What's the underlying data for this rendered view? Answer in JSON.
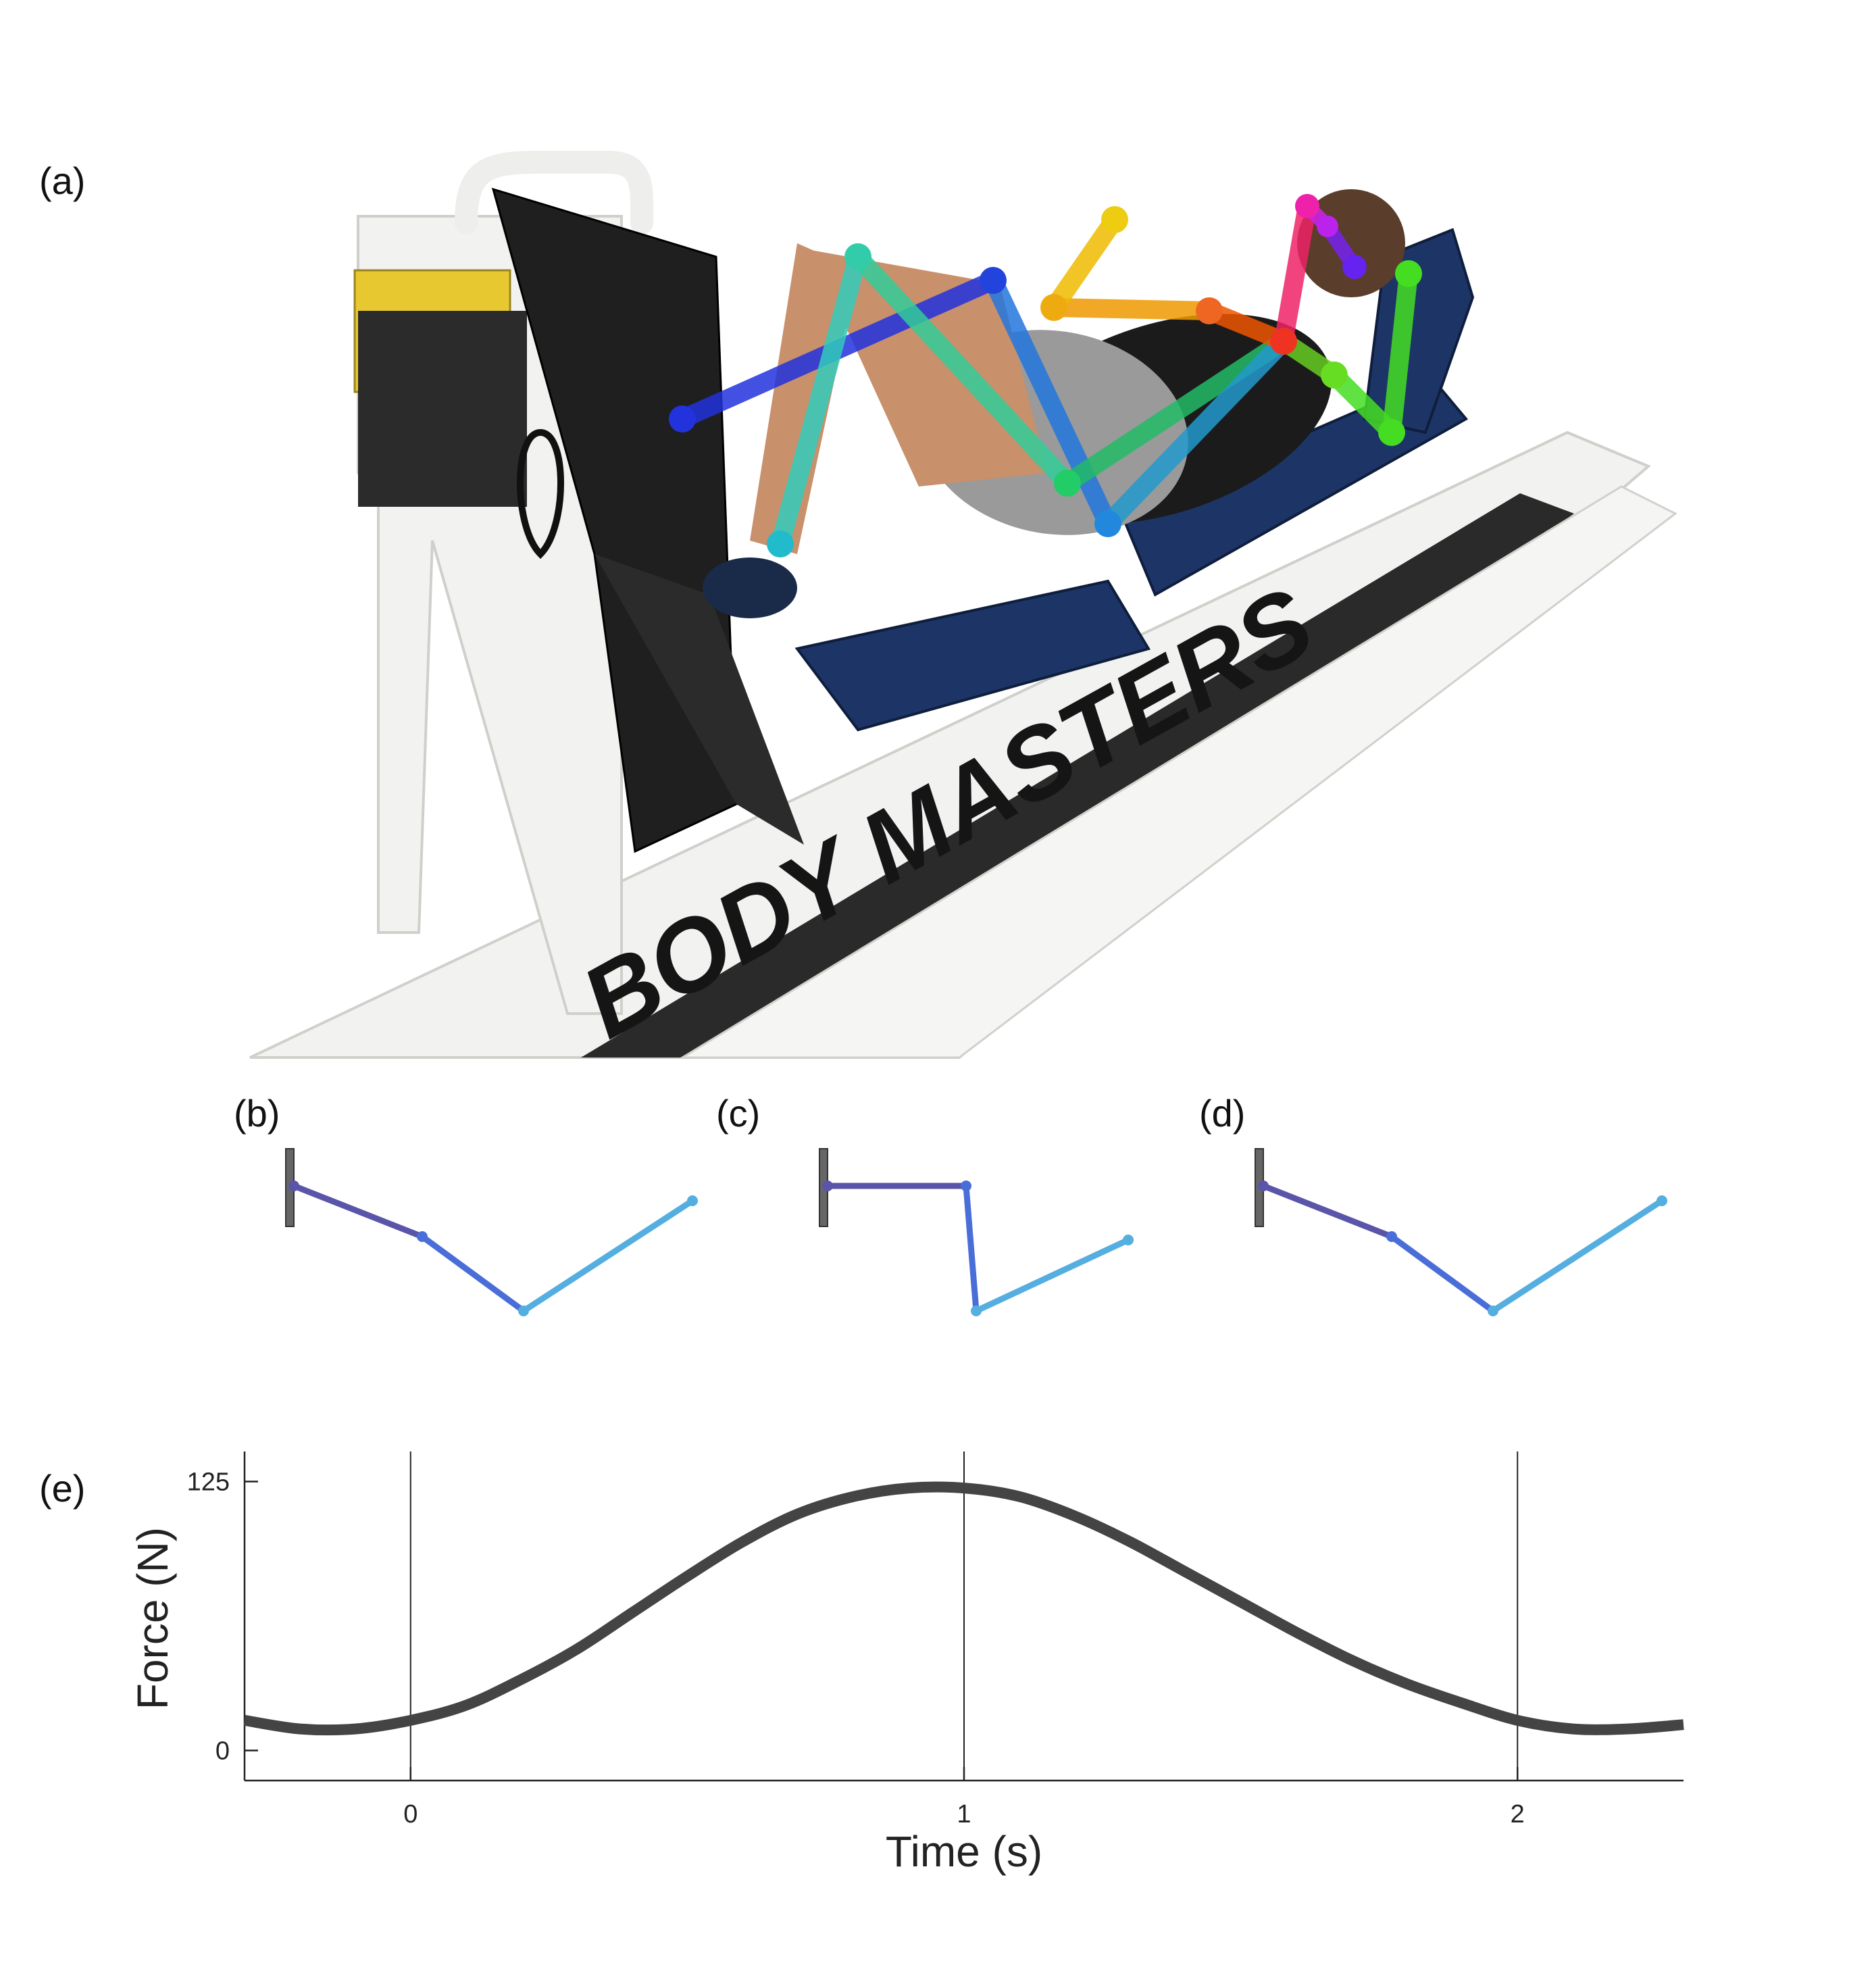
{
  "panels": {
    "a": "(a)",
    "b": "(b)",
    "c": "(c)",
    "d": "(d)",
    "e": "(e)"
  },
  "photo": {
    "machine_brand": "BODY MASTERS",
    "skeleton_colors": {
      "leg_right": "#2233dd",
      "leg_left": "#33ccbb",
      "torso": "#22bb77",
      "hip": "#2277dd",
      "arm_right": "#44dd22",
      "arm_left": "#eebb00",
      "shoulder": "#ee5500",
      "head": "#ee2299",
      "frame": "#f2f2f0",
      "pad": "#1d3566",
      "yellow_plate": "#e8c830"
    }
  },
  "stick_figures": {
    "wall_color": "#666666",
    "segment_colors": [
      "#5a55a8",
      "#4a6ed8",
      "#55aee0"
    ],
    "b": {
      "points": [
        [
          0,
          0
        ],
        [
          190,
          75
        ],
        [
          340,
          185
        ],
        [
          590,
          22
        ]
      ]
    },
    "c": {
      "points": [
        [
          0,
          0
        ],
        [
          205,
          0
        ],
        [
          220,
          185
        ],
        [
          445,
          80
        ]
      ]
    },
    "d": {
      "points": [
        [
          0,
          0
        ],
        [
          190,
          75
        ],
        [
          340,
          185
        ],
        [
          590,
          22
        ]
      ]
    }
  },
  "chart_data": {
    "type": "line",
    "xlabel": "Time (s)",
    "ylabel": "Force (N)",
    "xlim": [
      -0.3,
      2.3
    ],
    "ylim": [
      -14,
      139
    ],
    "xticks": [
      0,
      1,
      2
    ],
    "xtick_labels": [
      "0",
      "1",
      "2"
    ],
    "yticks": [
      0,
      125
    ],
    "ytick_labels": [
      "0",
      "125"
    ],
    "vertical_lines": [
      0,
      1,
      2
    ],
    "line_color": "#444444",
    "series": [
      {
        "x": [
          -0.3,
          -0.2,
          -0.1,
          0.0,
          0.1,
          0.2,
          0.3,
          0.4,
          0.5,
          0.6,
          0.7,
          0.8,
          0.9,
          1.0,
          1.1,
          1.2,
          1.3,
          1.4,
          1.5,
          1.6,
          1.7,
          1.8,
          1.9,
          2.0,
          2.1,
          2.2,
          2.3
        ],
        "values": [
          14,
          10,
          10,
          14,
          21,
          33,
          47,
          64,
          81,
          97,
          110,
          118,
          122,
          122,
          118,
          109,
          97,
          83,
          69,
          55,
          42,
          31,
          22,
          14,
          10,
          10,
          12
        ]
      }
    ]
  }
}
